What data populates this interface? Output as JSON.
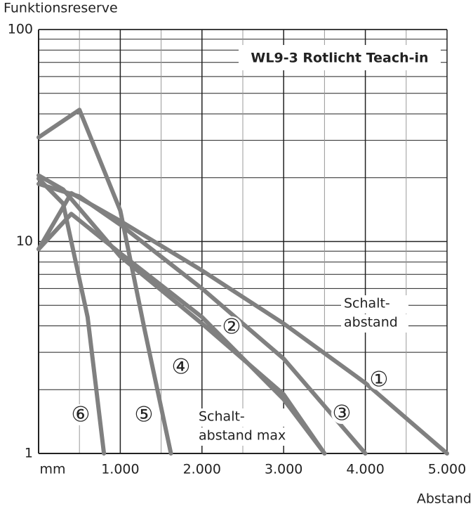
{
  "chart_data": {
    "type": "line",
    "title": "WL9-3 Rotlicht Teach-in",
    "y_label": "Funktionsreserve",
    "x_label": "Abstand",
    "x_unit": "mm",
    "log_y": true,
    "grid": true,
    "minor_grid": true,
    "xlim": [
      0,
      5000
    ],
    "ylim": [
      1,
      100
    ],
    "xticks": [
      {
        "value": 1000,
        "label": "1.000"
      },
      {
        "value": 2000,
        "label": "2.000"
      },
      {
        "value": 3000,
        "label": "3.000"
      },
      {
        "value": 4000,
        "label": "4.000"
      },
      {
        "value": 5000,
        "label": "5.000"
      }
    ],
    "yticks": [
      1,
      10,
      100
    ],
    "annotations": [
      [
        "Schalt-",
        "abstand"
      ],
      [
        "Schalt-",
        "abstand max"
      ]
    ],
    "series": [
      {
        "name": "①",
        "color": "#808080",
        "x": [
          0,
          400,
          1000,
          2000,
          3000,
          4000,
          5000
        ],
        "values": [
          9.2,
          16.9,
          12.5,
          7.3,
          4.1,
          2.15,
          1
        ]
      },
      {
        "name": "②",
        "color": "#808080",
        "x": [
          0,
          500,
          1000,
          2000,
          3000,
          4000
        ],
        "values": [
          18.7,
          16.3,
          12,
          6,
          2.8,
          1
        ]
      },
      {
        "name": "③",
        "color": "#808080",
        "x": [
          0,
          300,
          1000,
          2000,
          3000,
          3500
        ],
        "values": [
          20.5,
          17.6,
          8.5,
          4.1,
          1.9,
          1
        ]
      },
      {
        "name": "④",
        "color": "#808080",
        "x": [
          0,
          400,
          1000,
          2000,
          3000,
          3500
        ],
        "values": [
          9.2,
          13.5,
          8.8,
          4.4,
          1.8,
          1
        ]
      },
      {
        "name": "⑤",
        "color": "#808080",
        "x": [
          0,
          500,
          1000,
          1300,
          1620
        ],
        "values": [
          31,
          41.8,
          14,
          3.8,
          1
        ]
      },
      {
        "name": "⑥",
        "color": "#808080",
        "x": [
          0,
          300,
          600,
          800
        ],
        "values": [
          19.8,
          15.1,
          4.4,
          1
        ]
      }
    ]
  }
}
